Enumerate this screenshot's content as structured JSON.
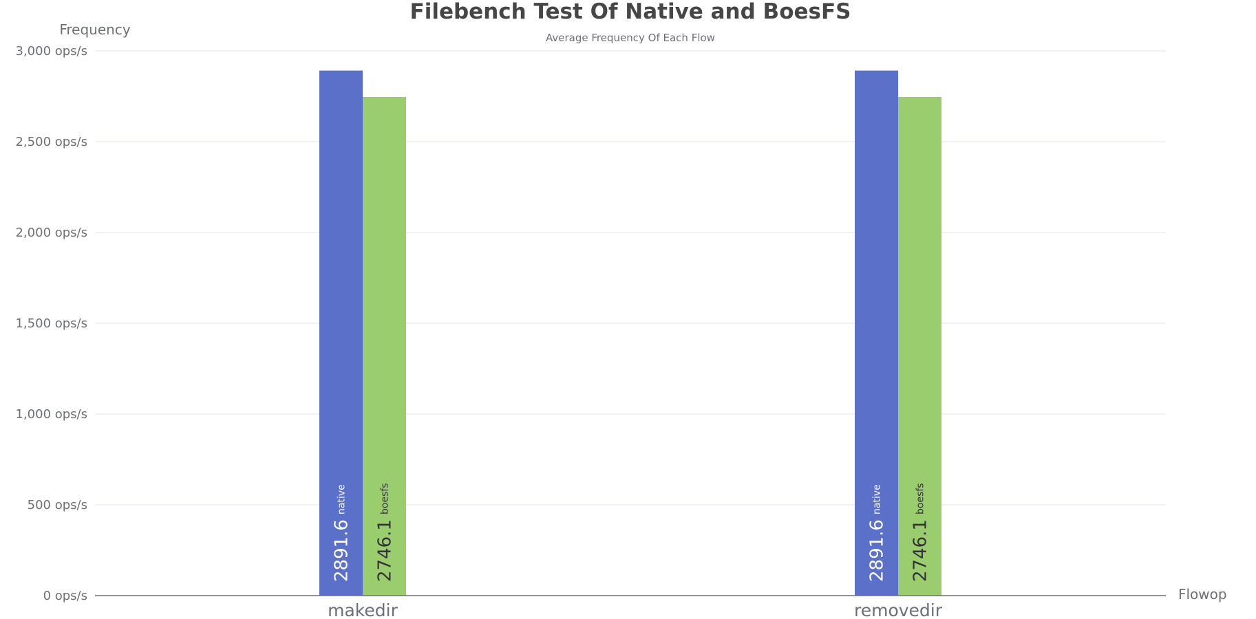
{
  "chart_data": {
    "type": "bar",
    "title": "Filebench Test Of Native and BoesFS",
    "subtitle": "Average Frequency Of Each Flow",
    "ylabel": "Frequency",
    "xlabel": "Flowop",
    "categories": [
      "makedir",
      "removedir"
    ],
    "series": [
      {
        "name": "native",
        "values": [
          2891.6,
          2891.6
        ],
        "color": "#5b70c9"
      },
      {
        "name": "boesfs",
        "values": [
          2746.1,
          2746.1
        ],
        "color": "#9acd6e"
      }
    ],
    "ylim": [
      0,
      3000
    ],
    "y_ticks": [
      0,
      500,
      1000,
      1500,
      2000,
      2500,
      3000
    ],
    "y_tick_labels": [
      "0 ops/s",
      "500 ops/s",
      "1,000 ops/s",
      "1,500 ops/s",
      "2,000 ops/s",
      "2,500 ops/s",
      "3,000 ops/s"
    ],
    "data_labels": [
      {
        "series": "native",
        "category": "makedir",
        "value_text": "2891.6",
        "series_text": "native"
      },
      {
        "series": "boesfs",
        "category": "makedir",
        "value_text": "2746.1",
        "series_text": "boesfs"
      },
      {
        "series": "native",
        "category": "removedir",
        "value_text": "2891.6",
        "series_text": "native"
      },
      {
        "series": "boesfs",
        "category": "removedir",
        "value_text": "2746.1",
        "series_text": "boesfs"
      }
    ],
    "grid": true,
    "legend": "none",
    "colors": {
      "grid": "#e0e6f1",
      "axis": "#6e7079",
      "text": "#6e7079",
      "title": "#464646",
      "label_on_native": "#ffffff",
      "label_on_boesfs": "#333333"
    }
  }
}
